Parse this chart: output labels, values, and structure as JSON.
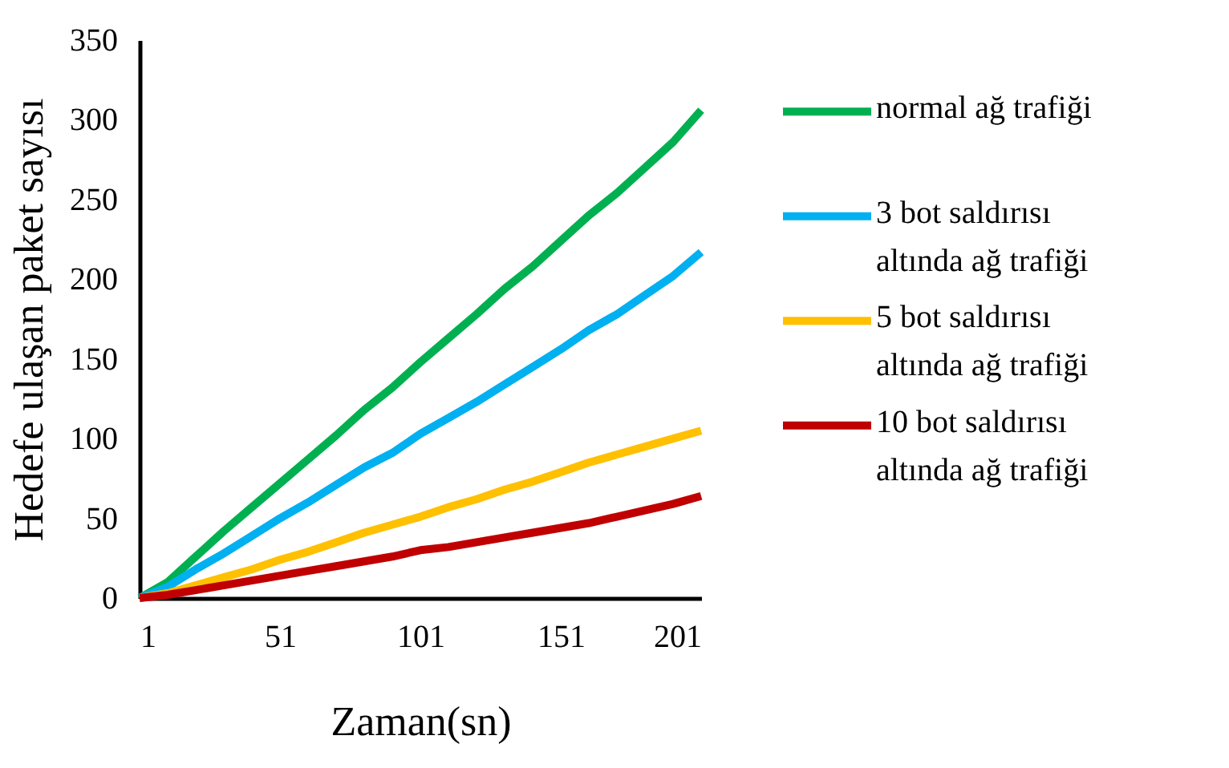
{
  "chart_data": {
    "type": "line",
    "xlabel": "Zaman(sn)",
    "ylabel": "Hedefe ulaşan paket sayısı",
    "x": [
      1,
      11,
      21,
      31,
      41,
      51,
      61,
      71,
      81,
      91,
      101,
      111,
      121,
      131,
      141,
      151,
      161,
      171,
      181,
      191,
      201
    ],
    "xlim": [
      1,
      201
    ],
    "xticks": [
      1,
      51,
      101,
      151,
      201
    ],
    "ylim": [
      0,
      350
    ],
    "yticks": [
      0,
      50,
      100,
      150,
      200,
      250,
      300,
      350
    ],
    "grid": false,
    "legend": "right",
    "marker": "none",
    "line_style": "solid",
    "series": [
      {
        "name": "normal ağ trafiği",
        "color": "#00b050",
        "values": [
          0,
          10,
          26,
          42,
          57,
          72,
          87,
          102,
          118,
          132,
          148,
          163,
          178,
          194,
          208,
          224,
          240,
          254,
          270,
          286,
          306
        ]
      },
      {
        "name": "3 bot saldırısı altında ağ trafiği",
        "color": "#00b0f0",
        "values": [
          0,
          7,
          18,
          28,
          39,
          50,
          60,
          71,
          82,
          91,
          103,
          113,
          123,
          134,
          145,
          156,
          168,
          178,
          190,
          202,
          217
        ]
      },
      {
        "name": "5 bot saldırısı altında ağ trafiği",
        "color": "#ffc000",
        "values": [
          0,
          3,
          8,
          13,
          18,
          24,
          29,
          35,
          41,
          46,
          51,
          57,
          62,
          68,
          73,
          79,
          85,
          90,
          95,
          100,
          105
        ]
      },
      {
        "name": "10 bot saldırısı altında ağ trafiği",
        "color": "#c00000",
        "values": [
          0,
          2,
          5,
          8,
          11,
          14,
          17,
          20,
          23,
          26,
          30,
          32,
          35,
          38,
          41,
          44,
          47,
          51,
          55,
          59,
          64
        ]
      }
    ]
  }
}
